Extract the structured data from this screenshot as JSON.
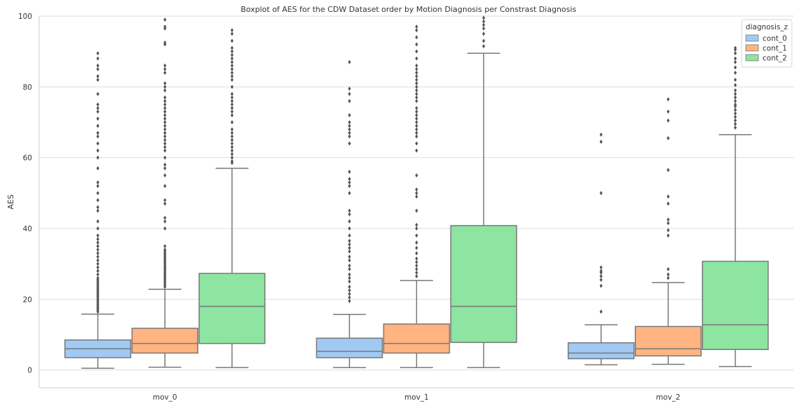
{
  "chart_data": {
    "type": "boxplot",
    "title": "Boxplot of AES for the CDW Dataset order by Motion Diagnosis per Constrast Diagnosis",
    "xlabel": "",
    "ylabel": "AES",
    "ylim": [
      -5,
      100
    ],
    "yticks": [
      0,
      20,
      40,
      60,
      80,
      100
    ],
    "grid": "horizontal",
    "categories": [
      "mov_0",
      "mov_1",
      "mov_2"
    ],
    "legend": {
      "title": "diagnosis_z",
      "position": "top-right"
    },
    "outlier_color": "#555555",
    "series": [
      {
        "name": "cont_0",
        "color": "#a1c9f4",
        "boxes": [
          {
            "whisker_low": 0.5,
            "q1": 3.5,
            "median": 6,
            "q3": 8.5,
            "whisker_high": 15.8,
            "outliers": [
              16.5,
              17,
              17.5,
              18,
              18.5,
              19,
              19.5,
              20,
              20.5,
              21,
              21.5,
              22,
              22.5,
              23,
              23.5,
              24,
              24.5,
              25,
              25.5,
              26,
              27,
              28,
              29,
              30,
              31,
              32,
              33,
              34,
              35,
              36,
              37,
              38,
              40,
              42,
              45,
              46,
              48,
              50,
              52,
              53,
              57,
              60,
              62,
              64,
              66,
              67,
              69,
              71,
              73,
              74,
              75,
              78,
              82,
              83,
              85,
              86,
              88,
              89.5
            ]
          },
          {
            "whisker_low": 0.7,
            "q1": 3.5,
            "median": 5.3,
            "q3": 9,
            "whisker_high": 15.7,
            "outliers": [
              19.5,
              20.5,
              21.5,
              22.5,
              23.5,
              25,
              26,
              27,
              28.5,
              29.5,
              31,
              32,
              33.5,
              34.5,
              35.5,
              36.5,
              38,
              40,
              42,
              44,
              45,
              50,
              52,
              53,
              54,
              56,
              64,
              66,
              67,
              68,
              69,
              70,
              72,
              76,
              78,
              79.5,
              87
            ]
          },
          {
            "whisker_low": 1.5,
            "q1": 3.2,
            "median": 4.8,
            "q3": 7.7,
            "whisker_high": 12.8,
            "outliers": [
              16.5,
              23.8,
              25.5,
              26.5,
              27.5,
              28,
              29,
              50,
              64.5,
              66.5
            ]
          }
        ]
      },
      {
        "name": "cont_1",
        "color": "#ffb482",
        "boxes": [
          {
            "whisker_low": 0.8,
            "q1": 4.8,
            "median": 7.5,
            "q3": 11.8,
            "whisker_high": 22.8,
            "outliers": [
              23.5,
              24,
              24.5,
              25,
              25.5,
              26,
              26.5,
              27,
              27.5,
              28,
              28.5,
              29,
              29.5,
              30,
              30.5,
              31,
              31.5,
              32,
              32.5,
              33,
              33.5,
              34,
              35,
              40,
              42,
              43,
              47,
              48,
              52,
              55,
              57,
              58,
              60,
              62,
              63,
              64,
              65,
              66,
              67,
              68,
              69,
              70,
              71,
              72,
              73,
              74,
              75,
              76,
              77,
              79,
              80,
              81,
              84,
              85,
              86,
              92,
              92.5,
              96.5,
              97,
              99
            ]
          },
          {
            "whisker_low": 0.7,
            "q1": 4.8,
            "median": 7.5,
            "q3": 13,
            "whisker_high": 25.3,
            "outliers": [
              26.5,
              27.5,
              28.5,
              29.5,
              30.5,
              31.5,
              33,
              34.5,
              36,
              38,
              40,
              41,
              45,
              49,
              50,
              51,
              55,
              62,
              64,
              66,
              67,
              68,
              69,
              70,
              71,
              72,
              73,
              74,
              76,
              77,
              78,
              79,
              80,
              81,
              82,
              83,
              84,
              85,
              86,
              88,
              90,
              92,
              94,
              96,
              97
            ]
          },
          {
            "whisker_low": 1.6,
            "q1": 4,
            "median": 6,
            "q3": 12.3,
            "whisker_high": 24.7,
            "outliers": [
              26,
              27,
              28.5,
              38,
              39.5,
              41.5,
              42.5,
              47,
              49,
              56.5,
              65.5,
              70.5,
              73,
              76.5
            ]
          }
        ]
      },
      {
        "name": "cont_2",
        "color": "#8de5a1",
        "boxes": [
          {
            "whisker_low": 0.7,
            "q1": 7.5,
            "median": 18,
            "q3": 27.3,
            "whisker_high": 57,
            "outliers": [
              58.5,
              59,
              60,
              61,
              62,
              63,
              64,
              65,
              66,
              67,
              68,
              70,
              72,
              73,
              74,
              75,
              76,
              77,
              78,
              80,
              82,
              83,
              84,
              85,
              86,
              87,
              88,
              89,
              90,
              91,
              93,
              95,
              96
            ]
          },
          {
            "whisker_low": 0.7,
            "q1": 7.8,
            "median": 18,
            "q3": 40.8,
            "whisker_high": 89.5,
            "outliers": [
              91.5,
              93,
              95,
              96.5,
              97.5,
              98.5,
              99.5
            ]
          },
          {
            "whisker_low": 1,
            "q1": 5.8,
            "median": 12.8,
            "q3": 30.7,
            "whisker_high": 66.5,
            "outliers": [
              68.5,
              69.5,
              70.5,
              71.5,
              72.5,
              73.5,
              74.5,
              75,
              76,
              77,
              78,
              79,
              80.5,
              82,
              84,
              85.5,
              87,
              88,
              89.5,
              90.5,
              91
            ]
          }
        ]
      }
    ]
  }
}
